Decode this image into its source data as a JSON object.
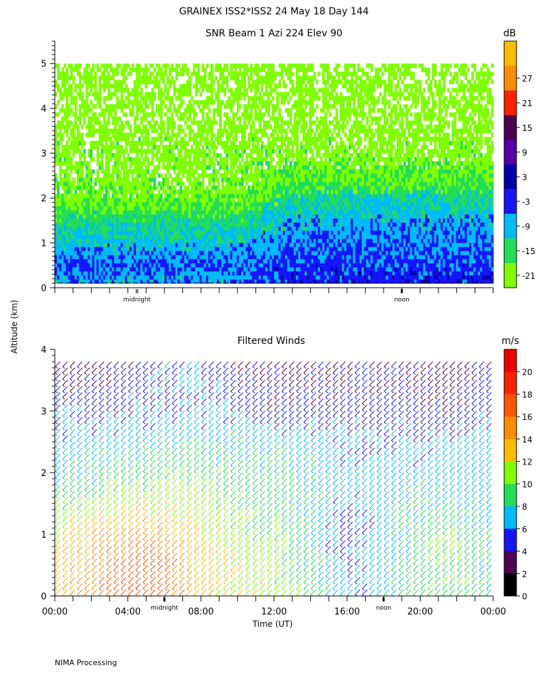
{
  "figure": {
    "title": "GRAINEX ISS2*ISS2  24 May 18 Day 144",
    "ylabel": "Altitude (km)",
    "footer": "NIMA Processing"
  },
  "chart_data": [
    {
      "type": "heatmap",
      "title": "SNR Beam 1 Azi 224 Elev 90",
      "ylabel": "Altitude (km)",
      "ylim": [
        0,
        5.5
      ],
      "yticks": [
        0,
        1,
        2,
        3,
        4,
        5
      ],
      "xlim_hours": [
        0,
        24
      ],
      "day_markers": [
        {
          "hour": 4.5,
          "label": "midnight"
        },
        {
          "hour": 19,
          "label": "noon"
        }
      ],
      "colorbar": {
        "unit": "dB",
        "ticks": [
          27,
          21,
          15,
          9,
          3,
          -3,
          -9,
          -15,
          -21
        ],
        "bins": [
          {
            "min": -24,
            "max": -18,
            "color": "#7fff00"
          },
          {
            "min": -18,
            "max": -12,
            "color": "#22dd55"
          },
          {
            "min": -12,
            "max": -6,
            "color": "#00bbff"
          },
          {
            "min": -6,
            "max": 0,
            "color": "#1515ff"
          },
          {
            "min": 0,
            "max": 6,
            "color": "#0000aa"
          },
          {
            "min": 6,
            "max": 12,
            "color": "#5500aa"
          },
          {
            "min": 12,
            "max": 18,
            "color": "#4b0050"
          },
          {
            "min": 18,
            "max": 24,
            "color": "#ff2200"
          },
          {
            "min": 24,
            "max": 30,
            "color": "#ff8c00"
          },
          {
            "min": 30,
            "max": 36,
            "color": "#ffbb00"
          }
        ]
      },
      "snr_profile_db": {
        "altitude_km": [
          0.2,
          0.5,
          1.0,
          1.5,
          2.0,
          2.5,
          3.0,
          4.0,
          5.0
        ],
        "night_0_10h": [
          -8,
          -5,
          -10,
          -14,
          -20,
          -22,
          -22,
          -23,
          -23
        ],
        "day_12_24h": [
          -2,
          -4,
          -6,
          -9,
          -13,
          -19,
          -22,
          -23,
          -23
        ]
      }
    },
    {
      "type": "wind_barbs",
      "title": "Filtered Winds",
      "ylabel": "Altitude (km)",
      "xlabel": "Time (UT)",
      "ylim": [
        0,
        4
      ],
      "yticks": [
        0,
        1,
        2,
        3,
        4
      ],
      "xlim_hours": [
        0,
        24
      ],
      "xticks": [
        "00:00",
        "04:00",
        "08:00",
        "12:00",
        "16:00",
        "20:00",
        "00:00"
      ],
      "day_markers": [
        {
          "hour": 6,
          "label": "midnight"
        },
        {
          "hour": 18,
          "label": "noon"
        }
      ],
      "colorbar": {
        "unit": "m/s",
        "ticks": [
          20,
          18,
          16,
          14,
          12,
          10,
          8,
          6,
          4,
          2,
          0
        ],
        "bins": [
          {
            "min": 0,
            "max": 2,
            "color": "#000000"
          },
          {
            "min": 2,
            "max": 4,
            "color": "#4b0050"
          },
          {
            "min": 4,
            "max": 6,
            "color": "#1515ff"
          },
          {
            "min": 6,
            "max": 8,
            "color": "#00bbff"
          },
          {
            "min": 8,
            "max": 10,
            "color": "#22dd55"
          },
          {
            "min": 10,
            "max": 12,
            "color": "#7fff00"
          },
          {
            "min": 12,
            "max": 14,
            "color": "#ffbb00"
          },
          {
            "min": 14,
            "max": 16,
            "color": "#ff8c00"
          },
          {
            "min": 16,
            "max": 18,
            "color": "#ff5500"
          },
          {
            "min": 18,
            "max": 20,
            "color": "#ff2200"
          },
          {
            "min": 20,
            "max": 22,
            "color": "#ee0000"
          }
        ]
      },
      "wind_speed_ms": {
        "hours": [
          0,
          2,
          4,
          6,
          8,
          10,
          12,
          14,
          16,
          18,
          20,
          22,
          24
        ],
        "altitude_km": [
          0.3,
          1.0,
          1.5,
          2.0,
          2.5,
          3.0,
          3.5,
          4.0
        ],
        "speed_rows": [
          [
            13,
            15,
            18,
            17,
            14,
            12,
            11,
            9,
            6,
            7,
            9,
            10,
            8
          ],
          [
            12,
            14,
            16,
            15,
            13,
            11,
            10,
            8,
            5,
            7,
            9,
            10,
            8
          ],
          [
            10,
            11,
            12,
            12,
            11,
            10,
            9,
            8,
            6,
            7,
            8,
            8,
            7
          ],
          [
            8,
            8,
            9,
            10,
            10,
            9,
            9,
            8,
            7,
            7,
            7,
            7,
            7
          ],
          [
            7,
            7,
            7,
            8,
            8,
            8,
            8,
            7,
            6,
            6,
            6,
            7,
            7
          ],
          [
            6,
            6,
            6,
            6,
            6,
            6,
            5,
            5,
            5,
            5,
            5,
            4,
            6
          ],
          [
            4,
            4,
            5,
            6,
            6,
            5,
            4,
            4,
            4,
            4,
            4,
            3,
            5
          ],
          [
            3,
            3,
            4,
            5,
            5,
            4,
            3,
            3,
            3,
            4,
            4,
            3,
            4
          ]
        ],
        "direction_deg": 225
      }
    }
  ]
}
